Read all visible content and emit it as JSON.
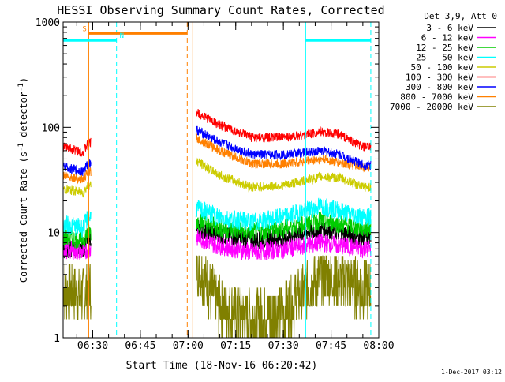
{
  "chart_data": {
    "type": "line",
    "title": "HESSI Observing Summary Count Rates, Corrected",
    "xlabel": "Start Time (18-Nov-16 06:20:42)",
    "ylabel_parts": [
      "Corrected Count Rate (s",
      "-1",
      " detector",
      "-1",
      ")"
    ],
    "y_scale": "log",
    "ylim": [
      1,
      1000
    ],
    "xlim": [
      "06:20:42",
      "08:00:00"
    ],
    "x_ticks": [
      "06:30",
      "06:45",
      "07:00",
      "07:15",
      "07:30",
      "07:45",
      "08:00"
    ],
    "y_ticks": [
      "1",
      "10",
      "100",
      "1000"
    ],
    "timestamp": "1-Dec-2017 03:12",
    "legend_position": "right",
    "legend_header": "Det 3,9, Att 0",
    "series": [
      {
        "name": "3 - 6 keV",
        "color": "#000000",
        "points": [
          [
            "06:20:42",
            7
          ],
          [
            "06:27:00",
            7
          ],
          [
            "06:28:30",
            9
          ],
          [
            "07:02:30",
            11
          ],
          [
            "07:10:00",
            9.5
          ],
          [
            "07:20:00",
            8.5
          ],
          [
            "07:30:00",
            9
          ],
          [
            "07:42:00",
            11
          ],
          [
            "07:48:00",
            10
          ],
          [
            "07:55:00",
            9
          ]
        ]
      },
      {
        "name": "6 - 12 keV",
        "color": "#ff00ff",
        "points": [
          [
            "06:20:42",
            7
          ],
          [
            "06:27:00",
            6.5
          ],
          [
            "06:28:30",
            7
          ],
          [
            "07:02:30",
            9
          ],
          [
            "07:10:00",
            7.5
          ],
          [
            "07:20:00",
            6.5
          ],
          [
            "07:30:00",
            7
          ],
          [
            "07:42:00",
            8
          ],
          [
            "07:48:00",
            7.5
          ],
          [
            "07:55:00",
            7
          ]
        ]
      },
      {
        "name": "12 - 25 keV",
        "color": "#00cc00",
        "points": [
          [
            "06:20:42",
            9
          ],
          [
            "06:27:00",
            8.5
          ],
          [
            "06:28:30",
            10
          ],
          [
            "07:02:30",
            13
          ],
          [
            "07:10:00",
            11
          ],
          [
            "07:20:00",
            10
          ],
          [
            "07:30:00",
            11
          ],
          [
            "07:42:00",
            13
          ],
          [
            "07:48:00",
            12
          ],
          [
            "07:55:00",
            11
          ]
        ]
      },
      {
        "name": "25 - 50 keV",
        "color": "#00ffff",
        "points": [
          [
            "06:20:42",
            12
          ],
          [
            "06:27:00",
            11
          ],
          [
            "06:28:30",
            14
          ],
          [
            "07:02:30",
            17
          ],
          [
            "07:10:00",
            14
          ],
          [
            "07:20:00",
            12.5
          ],
          [
            "07:30:00",
            14
          ],
          [
            "07:42:00",
            18
          ],
          [
            "07:48:00",
            16
          ],
          [
            "07:55:00",
            14
          ]
        ]
      },
      {
        "name": "50 - 100 keV",
        "color": "#cccc00",
        "points": [
          [
            "06:20:42",
            26
          ],
          [
            "06:27:00",
            24
          ],
          [
            "06:28:30",
            28
          ],
          [
            "07:02:30",
            48
          ],
          [
            "07:10:00",
            35
          ],
          [
            "07:20:00",
            27
          ],
          [
            "07:30:00",
            28
          ],
          [
            "07:42:00",
            34
          ],
          [
            "07:48:00",
            33
          ],
          [
            "07:55:00",
            27
          ]
        ]
      },
      {
        "name": "100 - 300 keV",
        "color": "#ff0000",
        "points": [
          [
            "06:20:42",
            65
          ],
          [
            "06:27:00",
            58
          ],
          [
            "06:28:30",
            70
          ],
          [
            "07:02:30",
            140
          ],
          [
            "07:10:00",
            105
          ],
          [
            "07:20:00",
            80
          ],
          [
            "07:30:00",
            80
          ],
          [
            "07:42:00",
            90
          ],
          [
            "07:48:00",
            85
          ],
          [
            "07:55:00",
            65
          ]
        ]
      },
      {
        "name": "300 - 800 keV",
        "color": "#0000ff",
        "points": [
          [
            "06:20:42",
            42
          ],
          [
            "06:27:00",
            38
          ],
          [
            "06:28:30",
            45
          ],
          [
            "07:02:30",
            95
          ],
          [
            "07:10:00",
            72
          ],
          [
            "07:20:00",
            55
          ],
          [
            "07:30:00",
            55
          ],
          [
            "07:42:00",
            60
          ],
          [
            "07:48:00",
            55
          ],
          [
            "07:55:00",
            44
          ]
        ]
      },
      {
        "name": "800 - 7000 keV",
        "color": "#ff8000",
        "points": [
          [
            "06:20:42",
            35
          ],
          [
            "06:27:00",
            32
          ],
          [
            "06:28:30",
            37
          ],
          [
            "07:02:30",
            80
          ],
          [
            "07:10:00",
            60
          ],
          [
            "07:20:00",
            45
          ],
          [
            "07:30:00",
            45
          ],
          [
            "07:42:00",
            50
          ],
          [
            "07:48:00",
            46
          ],
          [
            "07:55:00",
            42
          ]
        ]
      },
      {
        "name": "7000 - 20000 keV",
        "color": "#808000",
        "points": [
          [
            "06:20:42",
            3
          ],
          [
            "06:27:00",
            2.5
          ],
          [
            "06:28:30",
            3
          ],
          [
            "07:02:30",
            5
          ],
          [
            "07:10:00",
            2
          ],
          [
            "07:20:00",
            1.5
          ],
          [
            "07:30:00",
            1.8
          ],
          [
            "07:42:00",
            4
          ],
          [
            "07:48:00",
            3.5
          ],
          [
            "07:55:00",
            3
          ]
        ]
      }
    ],
    "annotations": [
      {
        "label": "S",
        "color": "#ff8000",
        "start": "06:28:45",
        "end": "06:59:45",
        "level": 780
      },
      {
        "label": "N",
        "color": "#00ffff",
        "start": "06:20:42",
        "end": "06:37:30",
        "level": 670
      },
      {
        "label": "",
        "color": "#00ffff",
        "start": "07:37:00",
        "end": "07:57:30",
        "level": 670
      }
    ],
    "vertical_markers": [
      {
        "time": "06:28:45",
        "color": "#ff8000",
        "style": "solid"
      },
      {
        "time": "06:37:30",
        "color": "#00ffff",
        "style": "dashed"
      },
      {
        "time": "06:59:45",
        "color": "#ff8000",
        "style": "dashed"
      },
      {
        "time": "07:01:30",
        "color": "#ff8000",
        "style": "solid"
      },
      {
        "time": "07:37:00",
        "color": "#00ffff",
        "style": "solid"
      },
      {
        "time": "07:57:30",
        "color": "#00ffff",
        "style": "dashed"
      }
    ]
  }
}
